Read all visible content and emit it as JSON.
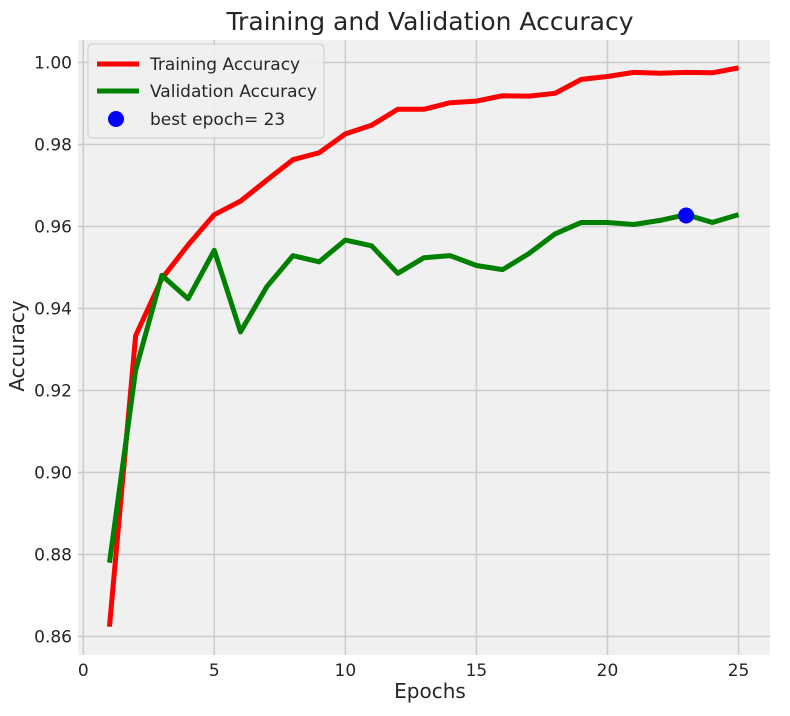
{
  "chart_data": {
    "type": "line",
    "title": "Training and Validation Accuracy",
    "xlabel": "Epochs",
    "ylabel": "Accuracy",
    "xlim": [
      -0.2,
      26.2
    ],
    "ylim": [
      0.8555,
      1.0055
    ],
    "xticks": [
      0,
      5,
      10,
      15,
      20,
      25
    ],
    "yticks": [
      0.86,
      0.88,
      0.9,
      0.92,
      0.94,
      0.96,
      0.98,
      1.0
    ],
    "xtick_labels": [
      "0",
      "5",
      "10",
      "15",
      "20",
      "25"
    ],
    "ytick_labels": [
      "0.86",
      "0.88",
      "0.90",
      "0.92",
      "0.94",
      "0.96",
      "0.98",
      "1.00"
    ],
    "grid": true,
    "legend_position": "top-left",
    "x": [
      1,
      2,
      3,
      4,
      5,
      6,
      7,
      8,
      9,
      10,
      11,
      12,
      13,
      14,
      15,
      16,
      17,
      18,
      19,
      20,
      21,
      22,
      23,
      24,
      25
    ],
    "series": [
      {
        "name": "Training Accuracy",
        "color": "#ff0000",
        "values": [
          0.8624,
          0.9334,
          0.9473,
          0.9555,
          0.9629,
          0.9662,
          0.9713,
          0.9763,
          0.978,
          0.9826,
          0.9847,
          0.9886,
          0.9886,
          0.9902,
          0.9906,
          0.9919,
          0.9918,
          0.9925,
          0.9959,
          0.9966,
          0.9976,
          0.9974,
          0.9976,
          0.9975,
          0.9987
        ]
      },
      {
        "name": "Validation Accuracy",
        "color": "#008000",
        "values": [
          0.878,
          0.925,
          0.9481,
          0.9424,
          0.9542,
          0.9343,
          0.9453,
          0.9529,
          0.9514,
          0.9567,
          0.9553,
          0.9486,
          0.9524,
          0.9529,
          0.9505,
          0.9495,
          0.9534,
          0.9582,
          0.961,
          0.961,
          0.9605,
          0.9615,
          0.9629,
          0.961,
          0.9629
        ]
      }
    ],
    "best_point": {
      "label": "best epoch= 23",
      "x": 23,
      "y": 0.9627,
      "color": "#0000ff"
    }
  }
}
